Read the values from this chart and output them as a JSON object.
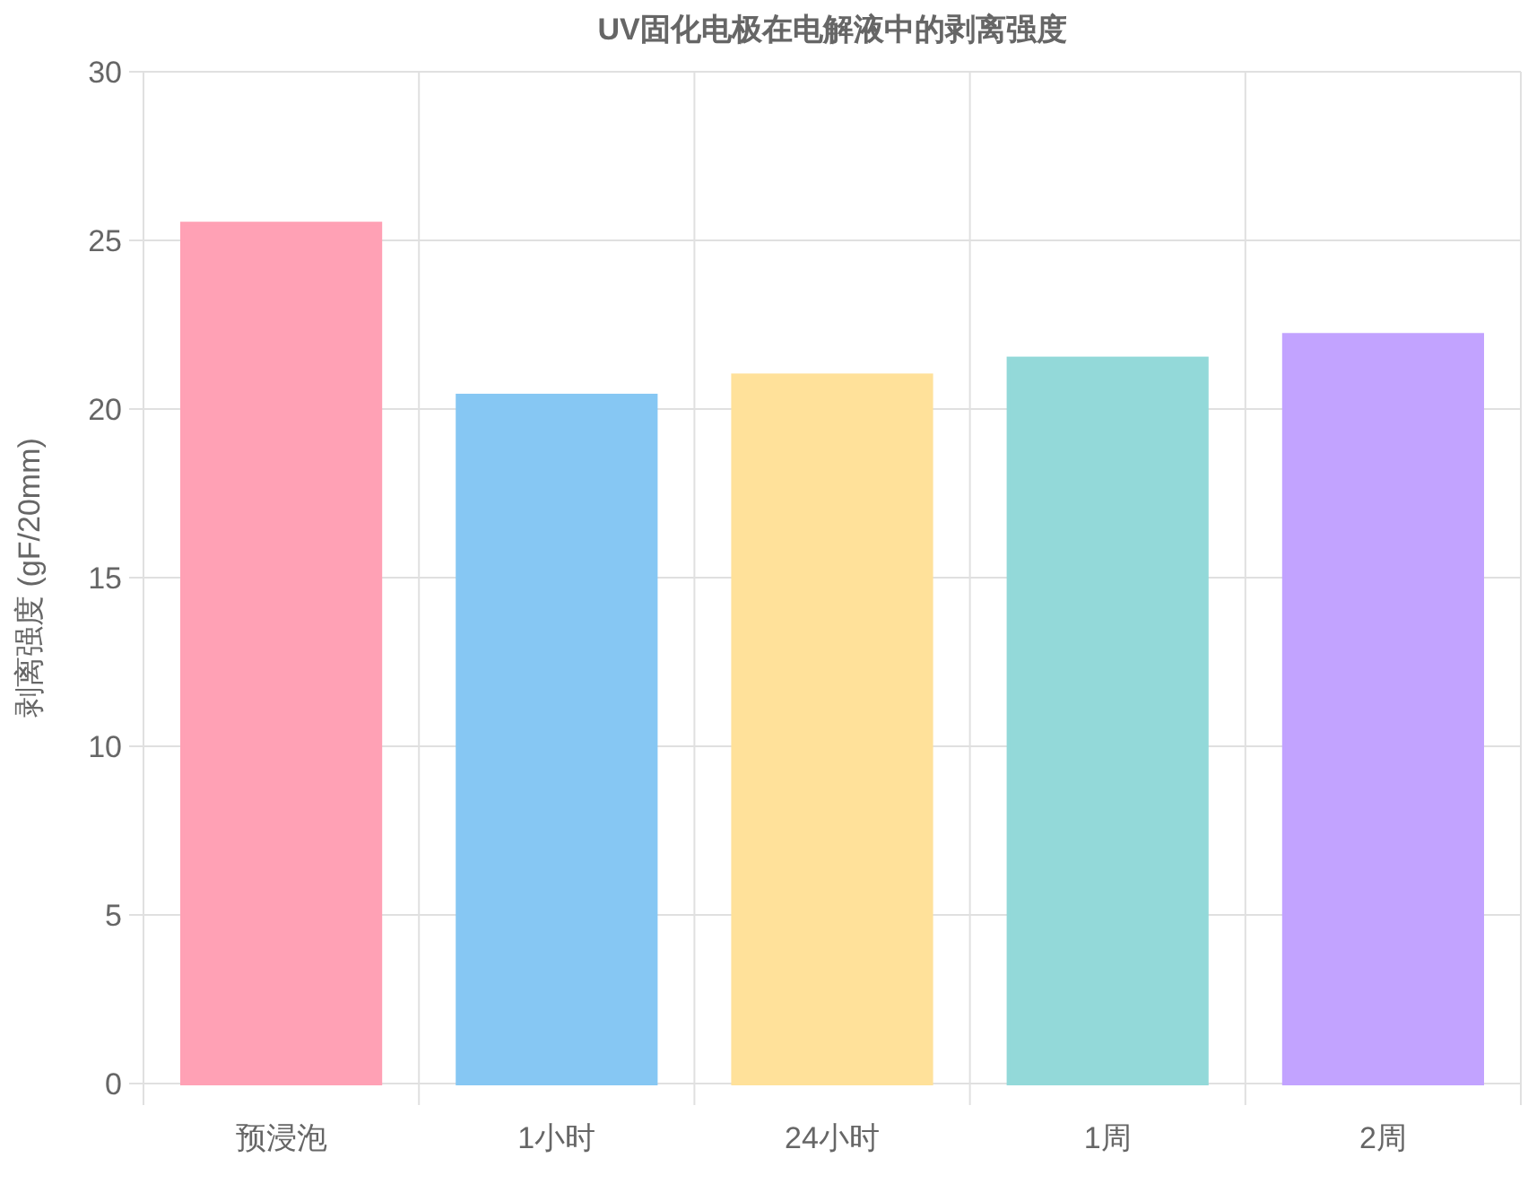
{
  "chart_data": {
    "type": "bar",
    "title": "UV固化电极在电解液中的剥离强度",
    "ylabel": "剥离强度 (gF/20mm)",
    "categories": [
      "预浸泡",
      "1小时",
      "24小时",
      "1周",
      "2周"
    ],
    "values": [
      25.5,
      20.4,
      21.0,
      21.5,
      22.2
    ],
    "colors": [
      "#ffa1b5",
      "#86c7f3",
      "#ffe19a",
      "#93d9d9",
      "#c2a3ff"
    ],
    "ylim": [
      0,
      30
    ],
    "yticks": [
      0,
      5,
      10,
      15,
      20,
      25,
      30
    ],
    "grid": true
  }
}
